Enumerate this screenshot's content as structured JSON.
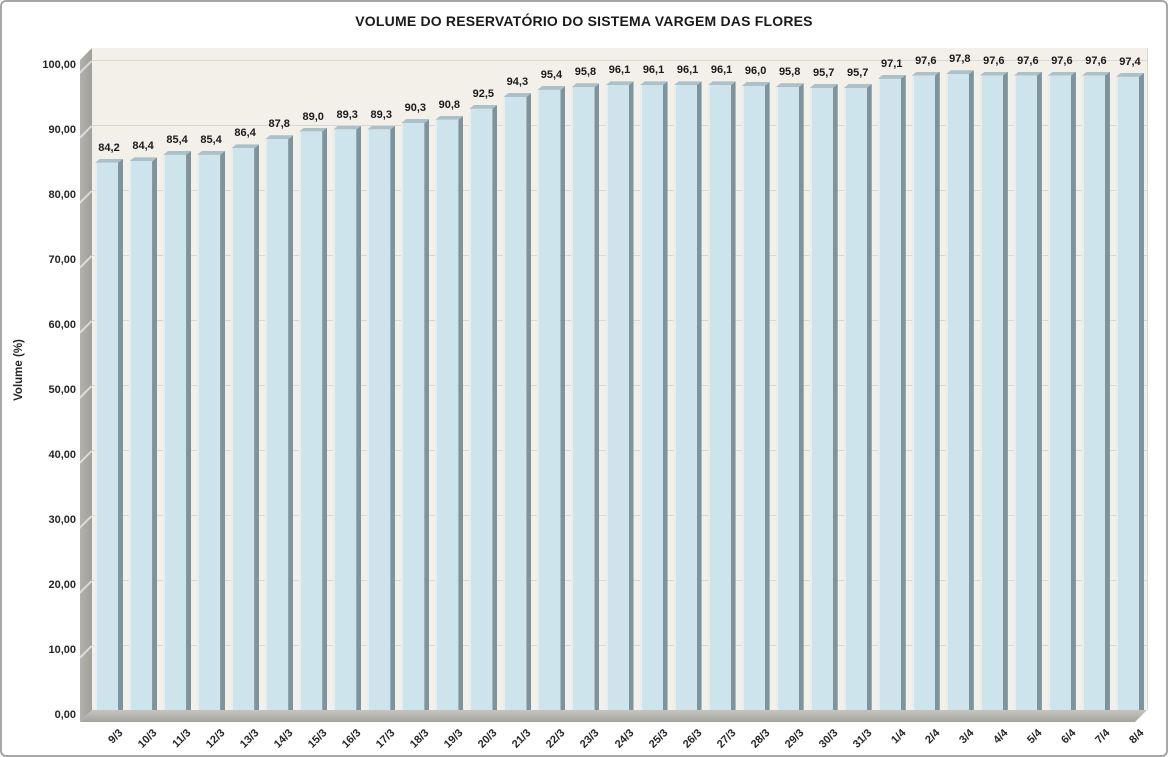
{
  "chart_data": {
    "type": "bar",
    "style": "excel-3d-column",
    "title": "VOLUME DO RESERVATÓRIO DO SISTEMA VARGEM DAS FLORES",
    "xlabel": "",
    "ylabel": "Volume (%)",
    "ylim": [
      0,
      100
    ],
    "y_tick_values": [
      0,
      10,
      20,
      30,
      40,
      50,
      60,
      70,
      80,
      90,
      100
    ],
    "y_tick_labels": [
      "0,00",
      "10,00",
      "20,00",
      "30,00",
      "40,00",
      "50,00",
      "60,00",
      "70,00",
      "80,00",
      "90,00",
      "100,00"
    ],
    "grid": "horizontal",
    "legend": "none",
    "categories": [
      "9/3",
      "10/3",
      "11/3",
      "12/3",
      "13/3",
      "14/3",
      "15/3",
      "16/3",
      "17/3",
      "18/3",
      "19/3",
      "20/3",
      "21/3",
      "22/3",
      "23/3",
      "24/3",
      "25/3",
      "26/3",
      "27/3",
      "28/3",
      "29/3",
      "30/3",
      "31/3",
      "1/4",
      "2/4",
      "3/4",
      "4/4",
      "5/4",
      "6/4",
      "7/4",
      "8/4"
    ],
    "values": [
      84.2,
      84.4,
      85.4,
      85.4,
      86.4,
      87.8,
      89.0,
      89.3,
      89.3,
      90.3,
      90.8,
      92.5,
      94.3,
      95.4,
      95.8,
      96.1,
      96.1,
      96.1,
      96.1,
      96.0,
      95.8,
      95.7,
      95.7,
      97.1,
      97.6,
      97.8,
      97.6,
      97.6,
      97.6,
      97.6,
      97.4
    ],
    "value_labels": [
      "84,2",
      "84,4",
      "85,4",
      "85,4",
      "86,4",
      "87,8",
      "89,0",
      "89,3",
      "89,3",
      "90,3",
      "90,8",
      "92,5",
      "94,3",
      "95,4",
      "95,8",
      "96,1",
      "96,1",
      "96,1",
      "96,1",
      "96,0",
      "95,8",
      "95,7",
      "95,7",
      "97,1",
      "97,6",
      "97,8",
      "97,6",
      "97,6",
      "97,6",
      "97,6",
      "97,4"
    ],
    "colors": {
      "bar_face": "#cde4ec",
      "bar_left_highlight": "#e2eff4",
      "bar_side": "#7f939b",
      "bar_top": "#abc0c8",
      "plot_bg": "#f2f0e9",
      "gridline": "#d9d7cf",
      "wall": "#a19f9a",
      "wall_light": "#b3b1ac",
      "floor_light": "#c6c4bf",
      "floor_dark": "#a5a39e",
      "frame_border": "#a6a6a6",
      "text_dark": "#1a1a1a",
      "text_axis": "#262626"
    }
  }
}
